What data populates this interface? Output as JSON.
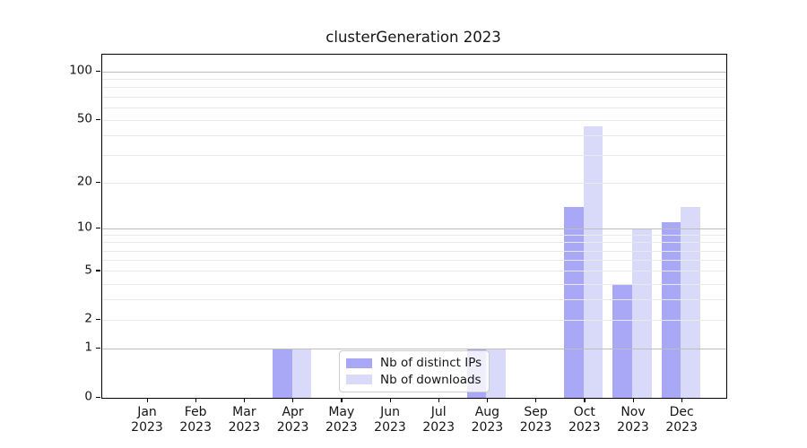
{
  "title": "clusterGeneration 2023",
  "chart_data": {
    "type": "bar",
    "title": "clusterGeneration 2023",
    "categories": [
      "Jan 2023",
      "Feb 2023",
      "Mar 2023",
      "Apr 2023",
      "May 2023",
      "Jun 2023",
      "Jul 2023",
      "Aug 2023",
      "Sep 2023",
      "Oct 2023",
      "Nov 2023",
      "Dec 2023"
    ],
    "series": [
      {
        "name": "Nb of distinct IPs",
        "color": "#a8a8f6",
        "values": [
          0,
          0,
          0,
          1,
          0,
          0,
          0,
          1,
          0,
          14,
          4,
          11
        ]
      },
      {
        "name": "Nb of downloads",
        "color": "#d9d9f9",
        "values": [
          0,
          0,
          0,
          1,
          0,
          0,
          0,
          1,
          0,
          46,
          10,
          14
        ]
      }
    ],
    "xlabel": "",
    "ylabel": "",
    "yscale": "log1p",
    "ylim": [
      0,
      128
    ],
    "ytick_values": [
      100,
      50,
      20,
      10,
      5,
      2,
      1,
      0
    ],
    "ytick_labels": [
      "100",
      "50",
      "20",
      "10",
      "5",
      "2",
      "1",
      "0"
    ],
    "minor_gridlines": [
      2,
      3,
      4,
      5,
      6,
      7,
      8,
      9,
      20,
      30,
      40,
      50,
      60,
      70,
      80,
      90
    ],
    "major_gridlines": [
      1,
      10,
      100
    ],
    "grid": true,
    "legend_position": "lower center"
  },
  "colors": {
    "distinct_ips_bar": "#a8a8f6",
    "downloads_bar": "#d9d9f9",
    "grid_major": "#bdbdbd",
    "grid_minor": "#e9e9e9",
    "axis": "#000000"
  }
}
